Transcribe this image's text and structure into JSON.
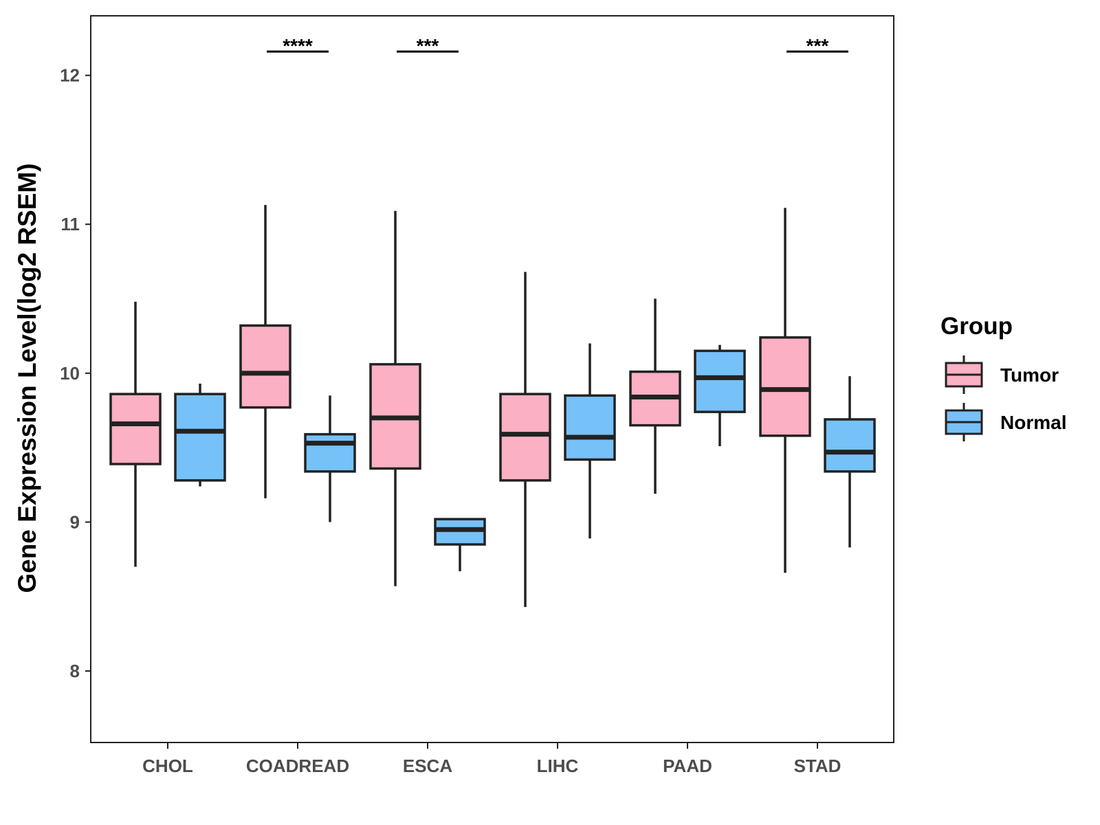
{
  "chart_data": {
    "type": "boxplot",
    "ylabel": "Gene Expression Level(log2 RSEM)",
    "xlabel": "",
    "ylim": [
      7.52,
      12.4
    ],
    "yticks": [
      8,
      9,
      10,
      11,
      12
    ],
    "categories": [
      "CHOL",
      "COADREAD",
      "ESCA",
      "LIHC",
      "PAAD",
      "STAD"
    ],
    "legend": {
      "title": "Group",
      "position": "right",
      "items": [
        {
          "name": "Tumor",
          "color": "#FBB0C3"
        },
        {
          "name": "Normal",
          "color": "#76C1F8"
        }
      ]
    },
    "series": [
      {
        "name": "Tumor",
        "color": "#FBB0C3",
        "boxes": [
          {
            "min": 8.7,
            "q1": 9.39,
            "median": 9.66,
            "q3": 9.86,
            "max": 10.48
          },
          {
            "min": 9.16,
            "q1": 9.77,
            "median": 10.0,
            "q3": 10.32,
            "max": 11.13
          },
          {
            "min": 8.57,
            "q1": 9.36,
            "median": 9.7,
            "q3": 10.06,
            "max": 11.09
          },
          {
            "min": 8.43,
            "q1": 9.28,
            "median": 9.59,
            "q3": 9.86,
            "max": 10.68
          },
          {
            "min": 9.19,
            "q1": 9.65,
            "median": 9.84,
            "q3": 10.01,
            "max": 10.5
          },
          {
            "min": 8.66,
            "q1": 9.58,
            "median": 9.89,
            "q3": 10.24,
            "max": 11.11
          }
        ]
      },
      {
        "name": "Normal",
        "color": "#76C1F8",
        "boxes": [
          {
            "min": 9.24,
            "q1": 9.28,
            "median": 9.61,
            "q3": 9.86,
            "max": 9.93
          },
          {
            "min": 9.0,
            "q1": 9.34,
            "median": 9.53,
            "q3": 9.59,
            "max": 9.85
          },
          {
            "min": 8.67,
            "q1": 8.85,
            "median": 8.95,
            "q3": 9.02,
            "max": 9.02
          },
          {
            "min": 8.89,
            "q1": 9.42,
            "median": 9.57,
            "q3": 9.85,
            "max": 10.2
          },
          {
            "min": 9.51,
            "q1": 9.74,
            "median": 9.97,
            "q3": 10.15,
            "max": 10.19
          },
          {
            "min": 8.83,
            "q1": 9.34,
            "median": 9.47,
            "q3": 9.69,
            "max": 9.98
          }
        ]
      }
    ],
    "significance": [
      {
        "category": "COADREAD",
        "label": "****"
      },
      {
        "category": "ESCA",
        "label": "***"
      },
      {
        "category": "STAD",
        "label": "***"
      }
    ]
  }
}
